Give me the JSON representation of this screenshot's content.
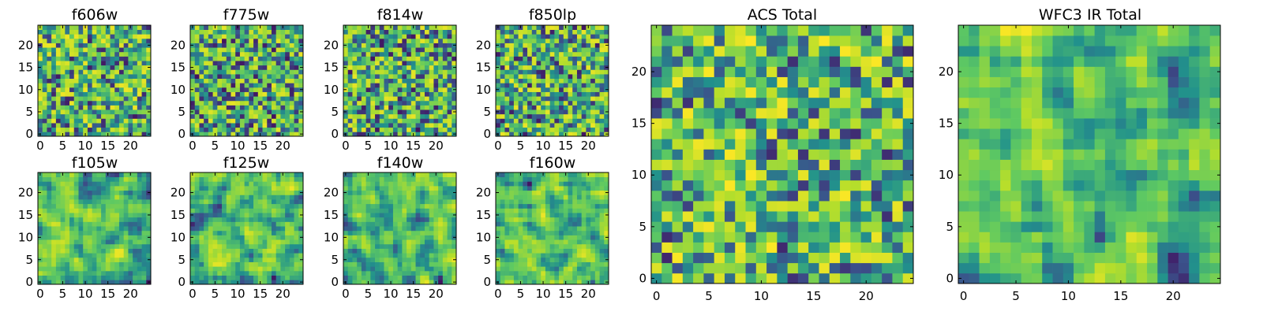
{
  "colormap": {
    "name": "viridis",
    "stops": [
      "#440154",
      "#3b528b",
      "#21918c",
      "#5ec962",
      "#b5de2b",
      "#fde725"
    ]
  },
  "chart_data": [
    {
      "type": "heatmap",
      "title": "f606w",
      "grid": [
        25,
        25
      ],
      "seed": 11,
      "smooth": 0,
      "bias": 0.52,
      "xticks": [
        0,
        5,
        10,
        15,
        20
      ],
      "yticks": [
        0,
        5,
        10,
        15,
        20
      ],
      "xtick_labels": [
        "0",
        "5",
        "10",
        "15",
        "20"
      ],
      "ytick_labels": [
        "0",
        "5",
        "10",
        "15",
        "20"
      ]
    },
    {
      "type": "heatmap",
      "title": "f775w",
      "grid": [
        25,
        25
      ],
      "seed": 23,
      "smooth": 0,
      "bias": 0.48,
      "xticks": [
        0,
        5,
        10,
        15,
        20
      ],
      "yticks": [
        0,
        5,
        10,
        15,
        20
      ],
      "xtick_labels": [
        "0",
        "5",
        "10",
        "15",
        "20"
      ],
      "ytick_labels": [
        "0",
        "5",
        "10",
        "15",
        "20"
      ]
    },
    {
      "type": "heatmap",
      "title": "f814w",
      "grid": [
        25,
        25
      ],
      "seed": 37,
      "smooth": 0,
      "bias": 0.48,
      "xticks": [
        0,
        5,
        10,
        15,
        20
      ],
      "yticks": [
        0,
        5,
        10,
        15,
        20
      ],
      "xtick_labels": [
        "0",
        "5",
        "10",
        "15",
        "20"
      ],
      "ytick_labels": [
        "0",
        "5",
        "10",
        "15",
        "20"
      ]
    },
    {
      "type": "heatmap",
      "title": "f850lp",
      "grid": [
        25,
        25
      ],
      "seed": 41,
      "smooth": 0,
      "bias": 0.5,
      "xticks": [
        0,
        5,
        10,
        15,
        20
      ],
      "yticks": [
        0,
        5,
        10,
        15,
        20
      ],
      "xtick_labels": [
        "0",
        "5",
        "10",
        "15",
        "20"
      ],
      "ytick_labels": [
        "0",
        "5",
        "10",
        "15",
        "20"
      ]
    },
    {
      "type": "heatmap",
      "title": "f105w",
      "grid": [
        25,
        25
      ],
      "seed": 53,
      "smooth": 1,
      "bias": 0.5,
      "xticks": [
        0,
        5,
        10,
        15,
        20
      ],
      "yticks": [
        0,
        5,
        10,
        15,
        20
      ],
      "xtick_labels": [
        "0",
        "5",
        "10",
        "15",
        "20"
      ],
      "ytick_labels": [
        "0",
        "5",
        "10",
        "15",
        "20"
      ]
    },
    {
      "type": "heatmap",
      "title": "f125w",
      "grid": [
        25,
        25
      ],
      "seed": 67,
      "smooth": 1,
      "bias": 0.52,
      "xticks": [
        0,
        5,
        10,
        15,
        20
      ],
      "yticks": [
        0,
        5,
        10,
        15,
        20
      ],
      "xtick_labels": [
        "0",
        "5",
        "10",
        "15",
        "20"
      ],
      "ytick_labels": [
        "0",
        "5",
        "10",
        "15",
        "20"
      ]
    },
    {
      "type": "heatmap",
      "title": "f140w",
      "grid": [
        25,
        25
      ],
      "seed": 79,
      "smooth": 1,
      "bias": 0.48,
      "xticks": [
        0,
        5,
        10,
        15,
        20
      ],
      "yticks": [
        0,
        5,
        10,
        15,
        20
      ],
      "xtick_labels": [
        "0",
        "5",
        "10",
        "15",
        "20"
      ],
      "ytick_labels": [
        "0",
        "5",
        "10",
        "15",
        "20"
      ]
    },
    {
      "type": "heatmap",
      "title": "f160w",
      "grid": [
        25,
        25
      ],
      "seed": 89,
      "smooth": 1,
      "bias": 0.5,
      "xticks": [
        0,
        5,
        10,
        15,
        20
      ],
      "yticks": [
        0,
        5,
        10,
        15,
        20
      ],
      "xtick_labels": [
        "0",
        "5",
        "10",
        "15",
        "20"
      ],
      "ytick_labels": [
        "0",
        "5",
        "10",
        "15",
        "20"
      ]
    },
    {
      "type": "heatmap",
      "title": "ACS Total",
      "grid": [
        25,
        25
      ],
      "seed": 101,
      "smooth": 0,
      "bias": 0.6,
      "xticks": [
        0,
        10,
        20
      ],
      "yticks": [
        0,
        5,
        10,
        15,
        20
      ],
      "xtick_labels": [
        "0",
        "10",
        "20"
      ],
      "ytick_labels": [
        "0",
        "5",
        "10",
        "15",
        "20"
      ],
      "minor_xticks": [
        5,
        15
      ]
    },
    {
      "type": "heatmap",
      "title": "WFC3 IR Total",
      "grid": [
        25,
        25
      ],
      "seed": 131,
      "smooth": 1,
      "bias": 0.58,
      "xticks": [
        0,
        5,
        10,
        15,
        20
      ],
      "yticks": [
        0,
        5,
        10,
        15,
        20
      ],
      "xtick_labels": [
        "0",
        "5",
        "10",
        "15",
        "20"
      ],
      "ytick_labels": [
        "0",
        "5",
        "10",
        "15",
        "20"
      ]
    }
  ]
}
